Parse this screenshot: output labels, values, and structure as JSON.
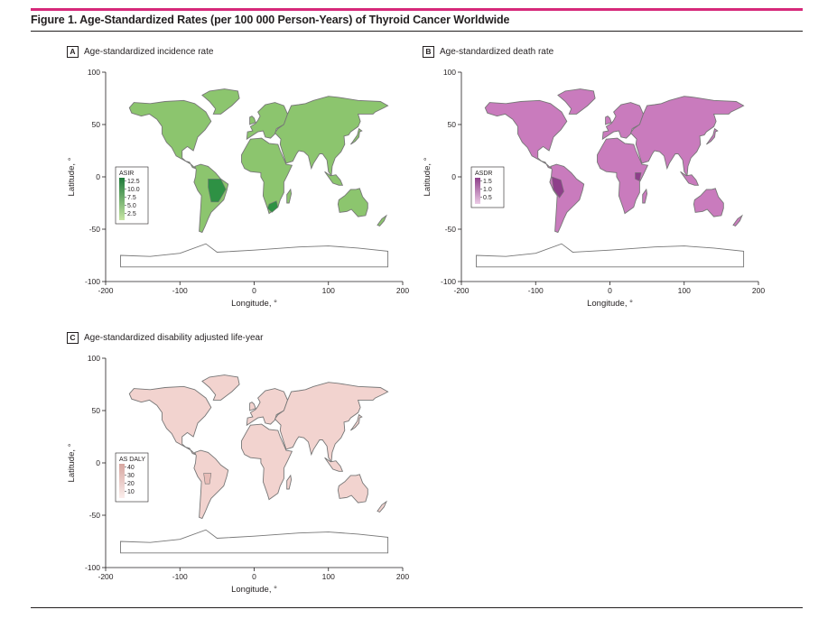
{
  "figure": {
    "title": "Figure 1. Age-Standardized Rates (per 100 000 Person-Years) of Thyroid Cancer Worldwide"
  },
  "axes": {
    "x_label": "Longitude, °",
    "y_label": "Latitude, °",
    "x_ticks": [
      "-200",
      "-100",
      "0",
      "100",
      "200"
    ],
    "y_ticks": [
      "100",
      "50",
      "0",
      "-50",
      "-100"
    ]
  },
  "panels": [
    {
      "letter": "A",
      "title": "Age-standardized incidence rate",
      "legend_title": "ASIR",
      "legend_ticks": [
        "12.5",
        "10.0",
        "7.5",
        "5.0",
        "2.5"
      ],
      "colors": {
        "base": "#8cc56e",
        "high": "#2e9144",
        "outline": "#777777"
      },
      "scale_low": "#c7e6a4",
      "scale_high": "#1f7a3a"
    },
    {
      "letter": "B",
      "title": "Age-standardized death rate",
      "legend_title": "ASDR",
      "legend_ticks": [
        "1.5",
        "1.0",
        "0.5"
      ],
      "colors": {
        "base": "#c97bbd",
        "high": "#8e3f8a",
        "outline": "#777777"
      },
      "scale_low": "#eccbe6",
      "scale_high": "#8e3f8a"
    },
    {
      "letter": "C",
      "title": "Age-standardized disability adjusted life-year",
      "legend_title": "AS DALY",
      "legend_ticks": [
        "40",
        "30",
        "20",
        "10"
      ],
      "colors": {
        "base": "#f2d3cf",
        "high": "#e7bcb7",
        "outline": "#777777"
      },
      "scale_low": "#fbeeec",
      "scale_high": "#d7a6a0"
    }
  ]
}
